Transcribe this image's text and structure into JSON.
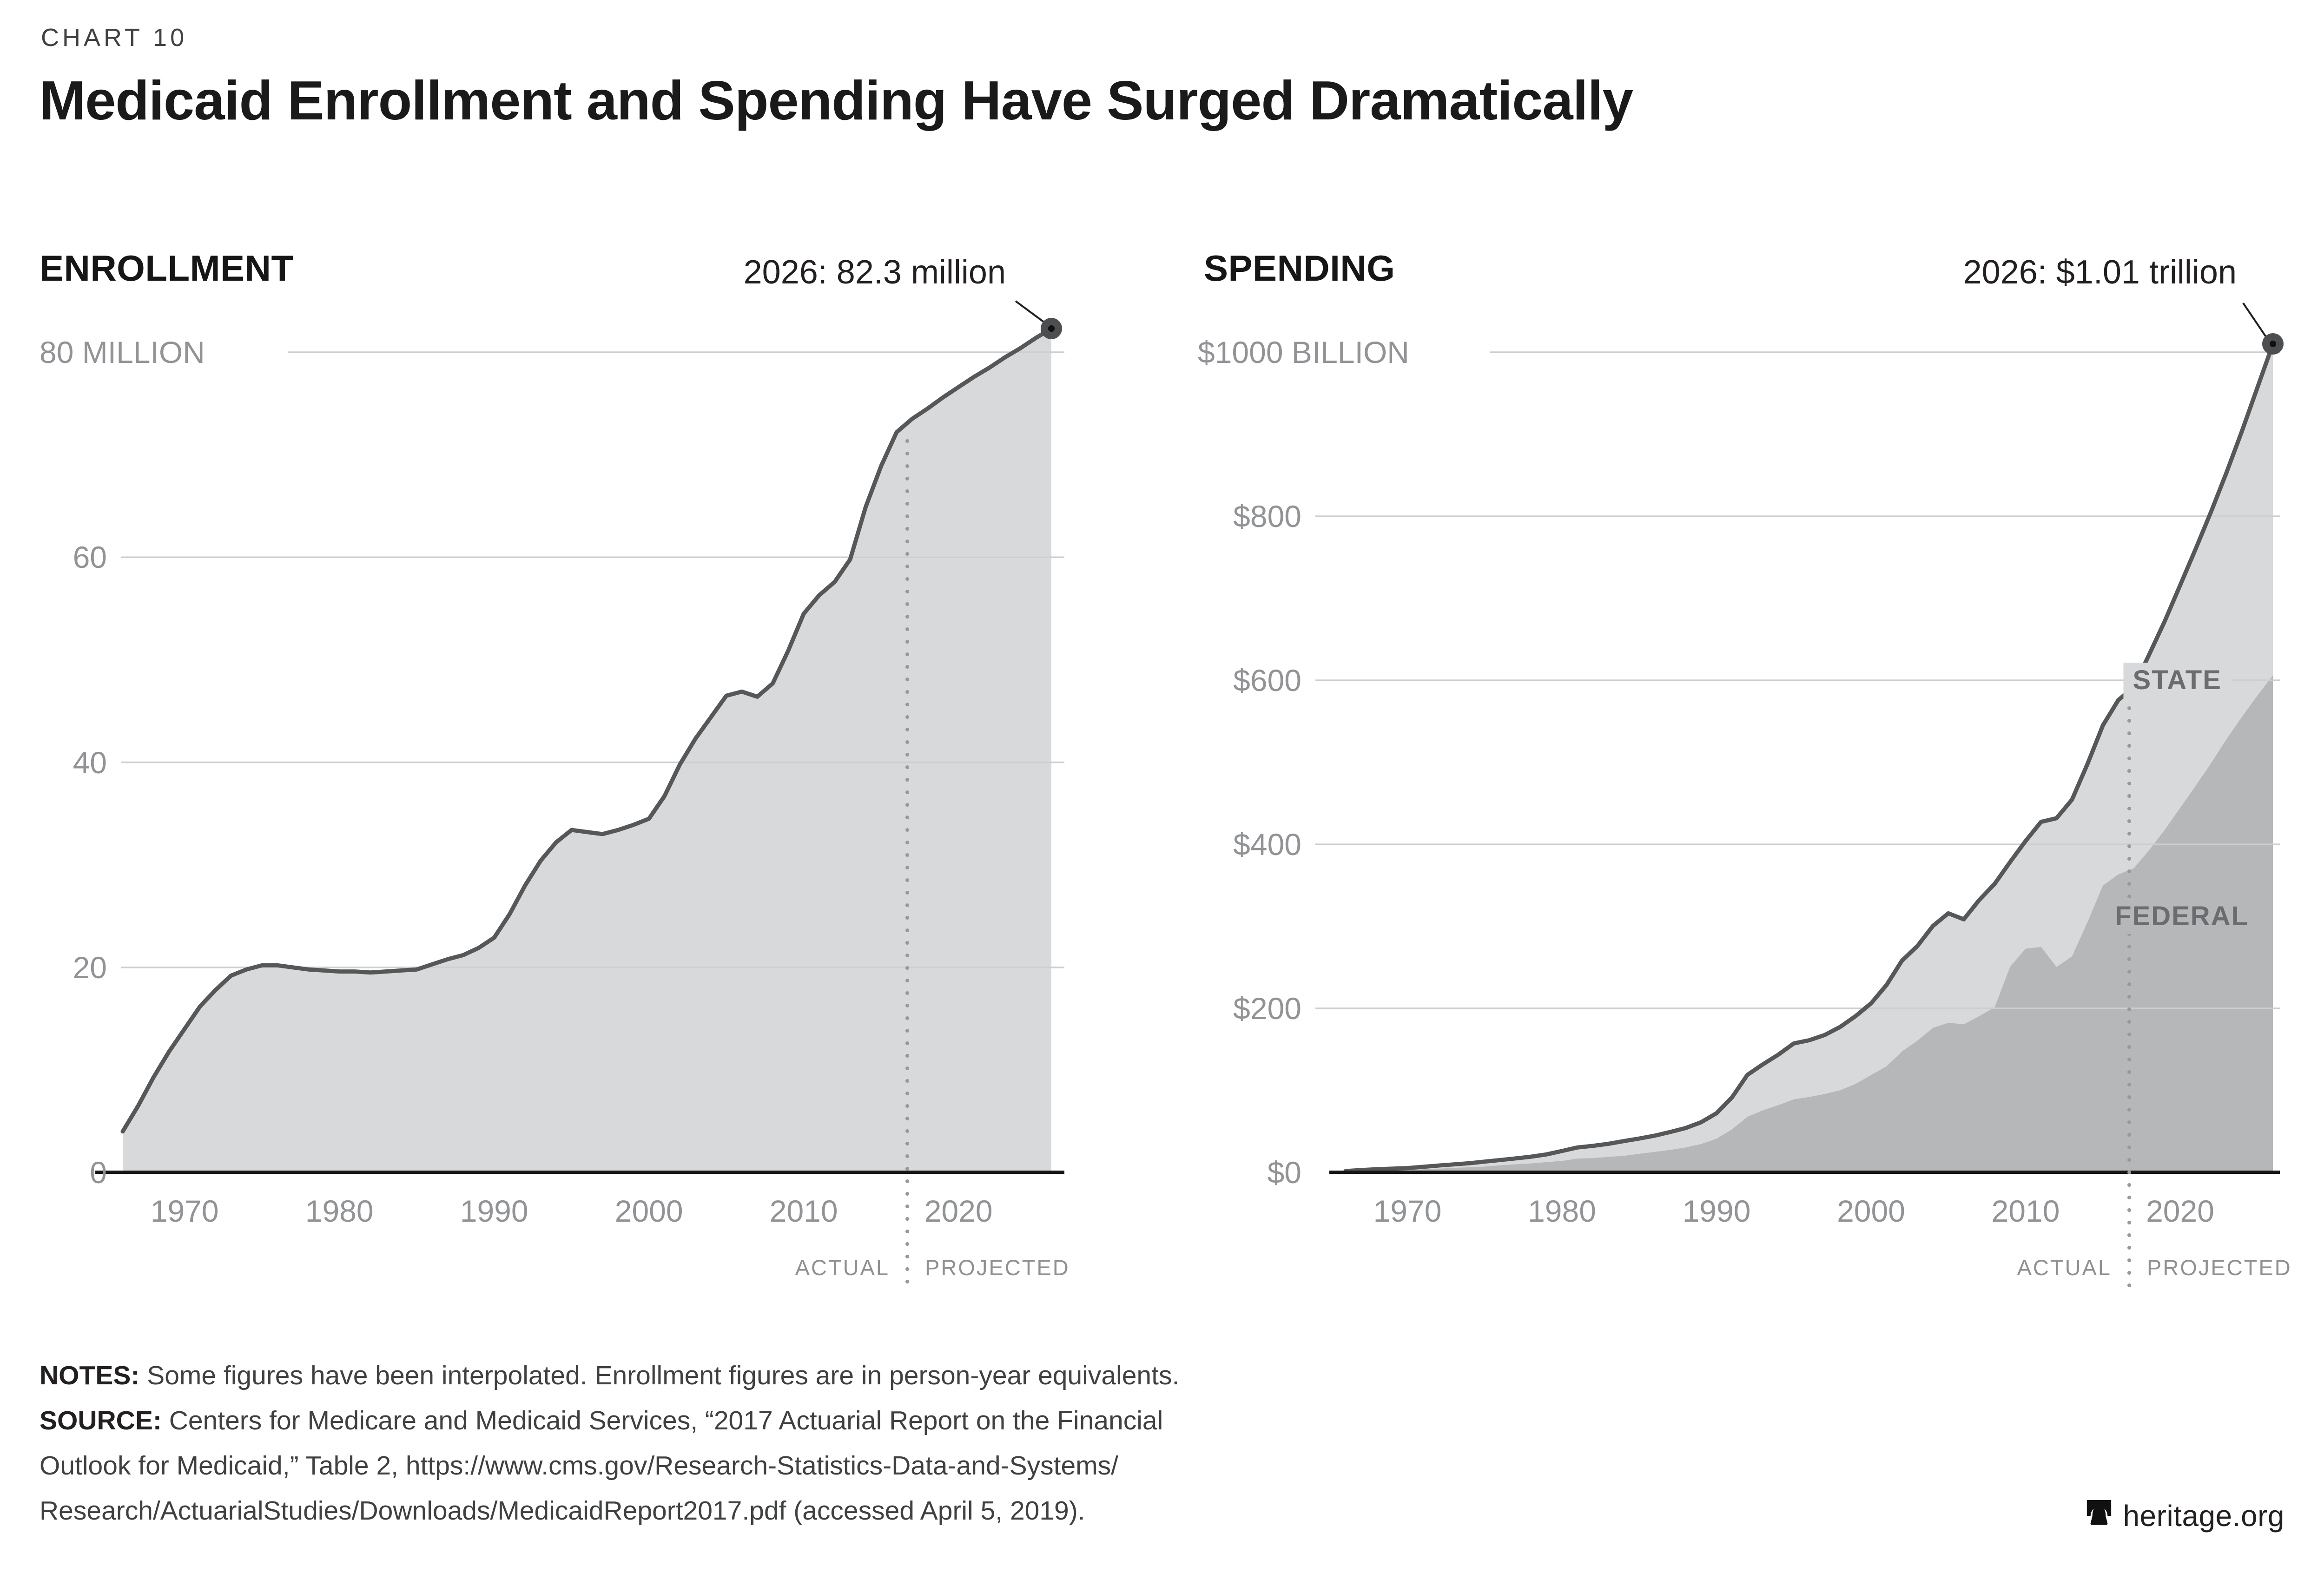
{
  "page": {
    "kicker": "CHART 10",
    "title": "Medicaid Enrollment and Spending Have Surged Dramatically"
  },
  "colors": {
    "line": "#565759",
    "area_light": "#d8d9db",
    "area_dark": "#b5b7b9",
    "grid": "#cdced0",
    "axis": "#161616",
    "tick_label": "#919396",
    "divider_dots": "#97999c",
    "annotation_text": "#231f20",
    "series_label": "#6b6c6f",
    "end_dot": "#4d4e50"
  },
  "chart_data": [
    {
      "type": "area",
      "panel_title": "ENROLLMENT",
      "annotation": "2026: 82.3 million",
      "unit": "million person-year equivalents",
      "xlim": [
        1966,
        2026
      ],
      "ylim": [
        0,
        80
      ],
      "grid": true,
      "xticks": [
        1970,
        1980,
        1990,
        2000,
        2010,
        2020
      ],
      "yticks": [
        {
          "v": 0,
          "label": "0"
        },
        {
          "v": 20,
          "label": "20"
        },
        {
          "v": 40,
          "label": "40"
        },
        {
          "v": 60,
          "label": "60"
        },
        {
          "v": 80,
          "label": "80 MILLION",
          "top": true
        }
      ],
      "divider_year": 2016.7,
      "divider_labels": [
        "ACTUAL",
        "PROJECTED"
      ],
      "years": [
        1966,
        1967,
        1968,
        1969,
        1970,
        1971,
        1972,
        1973,
        1974,
        1975,
        1976,
        1977,
        1978,
        1979,
        1980,
        1981,
        1982,
        1983,
        1984,
        1985,
        1986,
        1987,
        1988,
        1989,
        1990,
        1991,
        1992,
        1993,
        1994,
        1995,
        1996,
        1997,
        1998,
        1999,
        2000,
        2001,
        2002,
        2003,
        2004,
        2005,
        2006,
        2007,
        2008,
        2009,
        2010,
        2011,
        2012,
        2013,
        2014,
        2015,
        2016,
        2017,
        2018,
        2019,
        2020,
        2021,
        2022,
        2023,
        2024,
        2025,
        2026
      ],
      "values": [
        4.0,
        6.5,
        9.3,
        11.8,
        14.0,
        16.2,
        17.8,
        19.2,
        19.8,
        20.2,
        20.2,
        20.0,
        19.8,
        19.7,
        19.6,
        19.6,
        19.5,
        19.6,
        19.7,
        19.8,
        20.3,
        20.8,
        21.2,
        21.9,
        22.9,
        25.2,
        28.0,
        30.4,
        32.2,
        33.4,
        33.2,
        33.0,
        33.4,
        33.9,
        34.5,
        36.7,
        39.8,
        42.3,
        44.4,
        46.5,
        46.9,
        46.4,
        47.7,
        50.9,
        54.5,
        56.3,
        57.6,
        59.8,
        64.9,
        68.9,
        72.2,
        73.5,
        74.5,
        75.6,
        76.6,
        77.6,
        78.5,
        79.5,
        80.4,
        81.4,
        82.3
      ]
    },
    {
      "type": "stacked-area",
      "panel_title": "SPENDING",
      "annotation": "2026: $1.01 trillion",
      "unit": "billions of dollars",
      "xlim": [
        1966,
        2026
      ],
      "ylim": [
        0,
        1000
      ],
      "grid": true,
      "xticks": [
        1970,
        1980,
        1990,
        2000,
        2010,
        2020
      ],
      "yticks": [
        {
          "v": 0,
          "label": "$0"
        },
        {
          "v": 200,
          "label": "$200"
        },
        {
          "v": 400,
          "label": "$400"
        },
        {
          "v": 600,
          "label": "$600"
        },
        {
          "v": 800,
          "label": "$800"
        },
        {
          "v": 1000,
          "label": "$1000 BILLION",
          "top": true
        }
      ],
      "divider_year": 2016.7,
      "divider_labels": [
        "ACTUAL",
        "PROJECTED"
      ],
      "area_labels": [
        "STATE",
        "FEDERAL"
      ],
      "years": [
        1966,
        1967,
        1968,
        1969,
        1970,
        1971,
        1972,
        1973,
        1974,
        1975,
        1976,
        1977,
        1978,
        1979,
        1980,
        1981,
        1982,
        1983,
        1984,
        1985,
        1986,
        1987,
        1988,
        1989,
        1990,
        1991,
        1992,
        1993,
        1994,
        1995,
        1996,
        1997,
        1998,
        1999,
        2000,
        2001,
        2002,
        2003,
        2004,
        2005,
        2006,
        2007,
        2008,
        2009,
        2010,
        2011,
        2012,
        2013,
        2014,
        2015,
        2016,
        2017,
        2018,
        2019,
        2020,
        2021,
        2022,
        2023,
        2024,
        2025,
        2026
      ],
      "total_values": [
        1.7,
        2.9,
        3.9,
        4.6,
        5.3,
        6.8,
        8.4,
        9.8,
        11.2,
        13.2,
        15.1,
        17.1,
        19.2,
        22.0,
        26.1,
        30.4,
        32.4,
        34.9,
        38.2,
        41.3,
        44.8,
        49.3,
        54.1,
        61.2,
        72.2,
        91.5,
        119.0,
        131.8,
        143.6,
        157.3,
        161.2,
        167.6,
        177.4,
        190.6,
        206.2,
        228.5,
        258.2,
        276.1,
        300.5,
        315.9,
        308.6,
        332.2,
        351.9,
        378.6,
        404.1,
        427.4,
        431.9,
        454.5,
        497.8,
        545.1,
        575.9,
        592.2,
        631.6,
        672.0,
        715.9,
        760.1,
        805.5,
        853.4,
        903.9,
        957.0,
        1010.0
      ],
      "federal_values": [
        0.8,
        1.4,
        1.8,
        2.3,
        2.9,
        3.9,
        4.6,
        5.6,
        6.3,
        7.1,
        8.6,
        9.9,
        11.0,
        12.5,
        14.0,
        16.8,
        17.4,
        19.0,
        20.1,
        22.7,
        25.0,
        27.4,
        30.5,
        34.6,
        41.1,
        52.5,
        67.8,
        75.8,
        82.0,
        89.1,
        92.0,
        95.6,
        100.2,
        108.0,
        118.7,
        129.4,
        147.5,
        160.7,
        176.2,
        182.5,
        180.6,
        190.6,
        201.4,
        250.9,
        272.8,
        274.9,
        250.5,
        263.3,
        305.0,
        349.8,
        363.3,
        370.8,
        393.1,
        417.6,
        444.5,
        471.3,
        498.9,
        528.3,
        555.5,
        581.5,
        606.0
      ],
      "state_values_note": "state = total minus federal (stacked above federal up to the total line)"
    }
  ],
  "footer": {
    "notes_label": "NOTES:",
    "notes_text": " Some figures have been interpolated. Enrollment figures are in person-year equivalents.",
    "source_label": "SOURCE:",
    "source_line1": " Centers for Medicare and Medicaid Services, “2017 Actuarial Report on the Financial",
    "source_line2": "Outlook for Medicaid,” Table 2, https://www.cms.gov/Research-Statistics-Data-and-Systems/",
    "source_line3": "Research/ActuarialStudies/Downloads/MedicaidReport2017.pdf (accessed April 5, 2019).",
    "brand": "heritage.org"
  }
}
